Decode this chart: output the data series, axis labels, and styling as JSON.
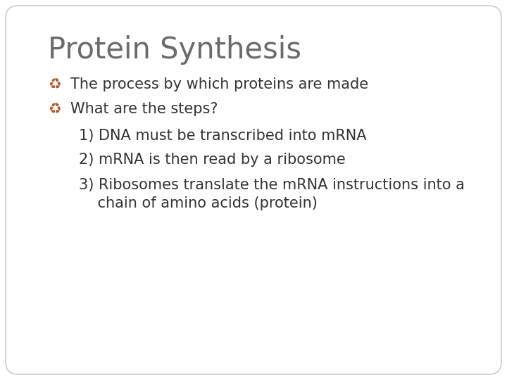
{
  "title": "Protein Synthesis",
  "title_color": "#6b6b6b",
  "title_fontsize": 30,
  "background_color": "#ffffff",
  "border_color": "#cccccc",
  "bullet_color": "#b05a2f",
  "body_color": "#333333",
  "body_fontsize": 15,
  "indent_fontsize": 15,
  "bullets": [
    "The process by which proteins are made",
    "What are the steps?"
  ],
  "numbered_items": [
    "1) DNA must be transcribed into mRNA",
    "2) mRNA is then read by a ribosome",
    "3) Ribosomes translate the mRNA instructions into a\n    chain of amino acids (protein)"
  ],
  "font_family": "DejaVu Sans"
}
